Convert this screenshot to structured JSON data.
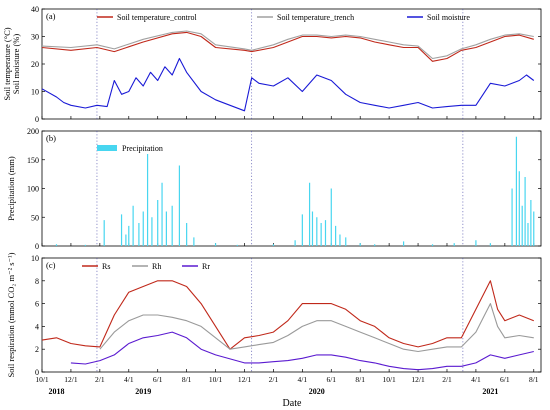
{
  "xaxis": {
    "label": "Date",
    "ticks": [
      "10/1",
      "12/1",
      "2/1",
      "4/1",
      "6/1",
      "8/1",
      "10/1",
      "12/1",
      "2/1",
      "4/1",
      "6/1",
      "8/1",
      "10/1",
      "12/1",
      "2/1",
      "4/1",
      "6/1",
      "8/1"
    ],
    "years": [
      "2018",
      "2019",
      "2020",
      "2021"
    ]
  },
  "dividers_month_index": [
    3.8,
    14.5,
    29.1
  ],
  "chart_data": [
    {
      "type": "line",
      "panel": "(a)",
      "ylabel": "Soil temperature (°C)\nSoil moisture (%)",
      "ylim": [
        0,
        40
      ],
      "yticks": [
        0,
        10,
        20,
        30,
        40
      ],
      "legend": "top",
      "series": [
        {
          "name": "Soil temperature_control",
          "color": "#c0281a",
          "x": [
            0,
            2,
            3.8,
            5,
            7,
            9,
            10,
            11,
            12,
            14,
            14.5,
            16,
            17,
            18,
            19,
            20,
            21,
            22,
            23,
            24,
            25,
            26,
            27,
            28,
            29,
            30,
            31,
            32,
            33,
            34
          ],
          "values": [
            26,
            25,
            26,
            24.5,
            28,
            31,
            31.5,
            30,
            26,
            25,
            24.5,
            26,
            28,
            30,
            30,
            29.5,
            30,
            29.5,
            28,
            27,
            26,
            26,
            21,
            22,
            25,
            26,
            28,
            30,
            30.5,
            29
          ]
        },
        {
          "name": "Soil temperature_trench",
          "color": "#a0a0a0",
          "x": [
            0,
            2,
            3.8,
            5,
            7,
            9,
            10,
            11,
            12,
            14,
            14.5,
            16,
            17,
            18,
            19,
            20,
            21,
            22,
            23,
            24,
            25,
            26,
            27,
            28,
            29,
            30,
            31,
            32,
            33,
            34
          ],
          "values": [
            26.5,
            26,
            27,
            25.5,
            29,
            31.5,
            32,
            31,
            27,
            25.5,
            25,
            27,
            29,
            30.5,
            30.5,
            30,
            30.5,
            30,
            29,
            28,
            27,
            26.5,
            22,
            23,
            25.5,
            27,
            29,
            30.5,
            31,
            30
          ]
        },
        {
          "name": "Soil moisture",
          "color": "#1a1ad6",
          "x": [
            0,
            1,
            1.5,
            2,
            3,
            3.8,
            4.5,
            5,
            5.5,
            6,
            6.5,
            7,
            7.5,
            8,
            8.5,
            9,
            9.5,
            10,
            11,
            12,
            13,
            14,
            14.5,
            15,
            16,
            17,
            18,
            19,
            20,
            21,
            22,
            23,
            24,
            25,
            26,
            27,
            28,
            29,
            30,
            31,
            32,
            33,
            33.5,
            34
          ],
          "values": [
            11,
            8,
            6,
            5,
            4,
            5,
            4.5,
            14,
            9,
            10,
            15,
            12,
            17,
            14,
            19,
            16,
            22,
            17,
            10,
            7,
            5,
            3,
            15,
            13,
            12,
            15,
            10,
            16,
            14,
            9,
            6,
            5,
            4,
            5,
            6,
            4,
            4.5,
            5,
            5,
            13,
            12,
            14,
            16,
            14
          ]
        }
      ]
    },
    {
      "type": "bar",
      "panel": "(b)",
      "ylabel": "Precipitation (mm)",
      "ylim": [
        0,
        200
      ],
      "yticks": [
        0,
        50,
        100,
        150,
        200
      ],
      "legend": "top-left",
      "series": [
        {
          "name": "Precipitation",
          "color": "#48d6f0",
          "x": [
            1,
            3,
            4.3,
            5.5,
            5.8,
            6,
            6.3,
            6.7,
            7,
            7.3,
            7.6,
            8,
            8.3,
            8.6,
            9,
            9.5,
            10,
            10.5,
            12,
            13.5,
            16,
            17.5,
            18,
            18.5,
            18.7,
            19,
            19.3,
            19.6,
            20,
            20.3,
            20.6,
            21,
            22,
            23,
            25,
            27,
            28.5,
            30,
            31,
            32.5,
            32.8,
            33,
            33.2,
            33.4,
            33.6,
            33.8,
            34
          ],
          "values": [
            3,
            2,
            45,
            55,
            20,
            35,
            70,
            40,
            60,
            160,
            50,
            80,
            110,
            60,
            70,
            140,
            40,
            15,
            5,
            2,
            3,
            10,
            55,
            110,
            60,
            50,
            40,
            45,
            100,
            35,
            20,
            15,
            5,
            3,
            8,
            3,
            5,
            10,
            5,
            100,
            190,
            130,
            70,
            120,
            40,
            80,
            60
          ]
        }
      ]
    },
    {
      "type": "line",
      "panel": "(c)",
      "ylabel": "Soil respiration (mmol CO₂ m⁻² s⁻¹)",
      "ylim": [
        0,
        10
      ],
      "yticks": [
        0,
        2,
        4,
        6,
        8,
        10
      ],
      "legend": "top",
      "series": [
        {
          "name": "Rs",
          "color": "#c0281a",
          "x": [
            0,
            1,
            2,
            3,
            4,
            5,
            6,
            7,
            8,
            9,
            10,
            11,
            12,
            13,
            14,
            15,
            16,
            17,
            18,
            19,
            20,
            21,
            22,
            23,
            24,
            25,
            26,
            27,
            28,
            29,
            30,
            31,
            31.5,
            32,
            33,
            34
          ],
          "values": [
            2.8,
            3,
            2.5,
            2.3,
            2.2,
            5,
            7,
            7.5,
            8,
            8,
            7.5,
            6,
            4,
            2,
            3,
            3.2,
            3.5,
            4.5,
            6,
            6,
            6,
            5.5,
            4.5,
            4,
            3,
            2.5,
            2.2,
            2.5,
            3,
            3,
            5.5,
            8,
            5.5,
            4.5,
            5,
            4.5
          ]
        },
        {
          "name": "Rh",
          "color": "#9a9a9a",
          "x": [
            4,
            5,
            6,
            7,
            8,
            9,
            10,
            11,
            12,
            13,
            14,
            15,
            16,
            17,
            18,
            19,
            20,
            21,
            22,
            23,
            24,
            25,
            26,
            27,
            28,
            29,
            30,
            31,
            31.5,
            32,
            33,
            34
          ],
          "values": [
            2,
            3.5,
            4.5,
            5,
            5,
            4.8,
            4.5,
            4,
            3,
            2,
            2.2,
            2.4,
            2.6,
            3.2,
            4,
            4.5,
            4.5,
            4,
            3.5,
            3,
            2.5,
            2,
            1.8,
            2,
            2.2,
            2.2,
            3.5,
            6,
            4,
            3,
            3.2,
            3
          ]
        },
        {
          "name": "Rr",
          "color": "#5a1ad0",
          "x": [
            2,
            3,
            4,
            5,
            6,
            7,
            8,
            9,
            10,
            11,
            12,
            14,
            15,
            16,
            17,
            18,
            19,
            20,
            21,
            22,
            23,
            24,
            25,
            26,
            27,
            28,
            29,
            30,
            31,
            32,
            33,
            34
          ],
          "values": [
            0.8,
            0.7,
            1,
            1.5,
            2.5,
            3,
            3.2,
            3.5,
            3,
            2,
            1.5,
            0.8,
            0.8,
            0.9,
            1,
            1.2,
            1.5,
            1.5,
            1.3,
            1,
            0.8,
            0.5,
            0.3,
            0.2,
            0.3,
            0.5,
            0.5,
            0.8,
            1.5,
            1.2,
            1.5,
            1.8
          ]
        }
      ]
    }
  ]
}
